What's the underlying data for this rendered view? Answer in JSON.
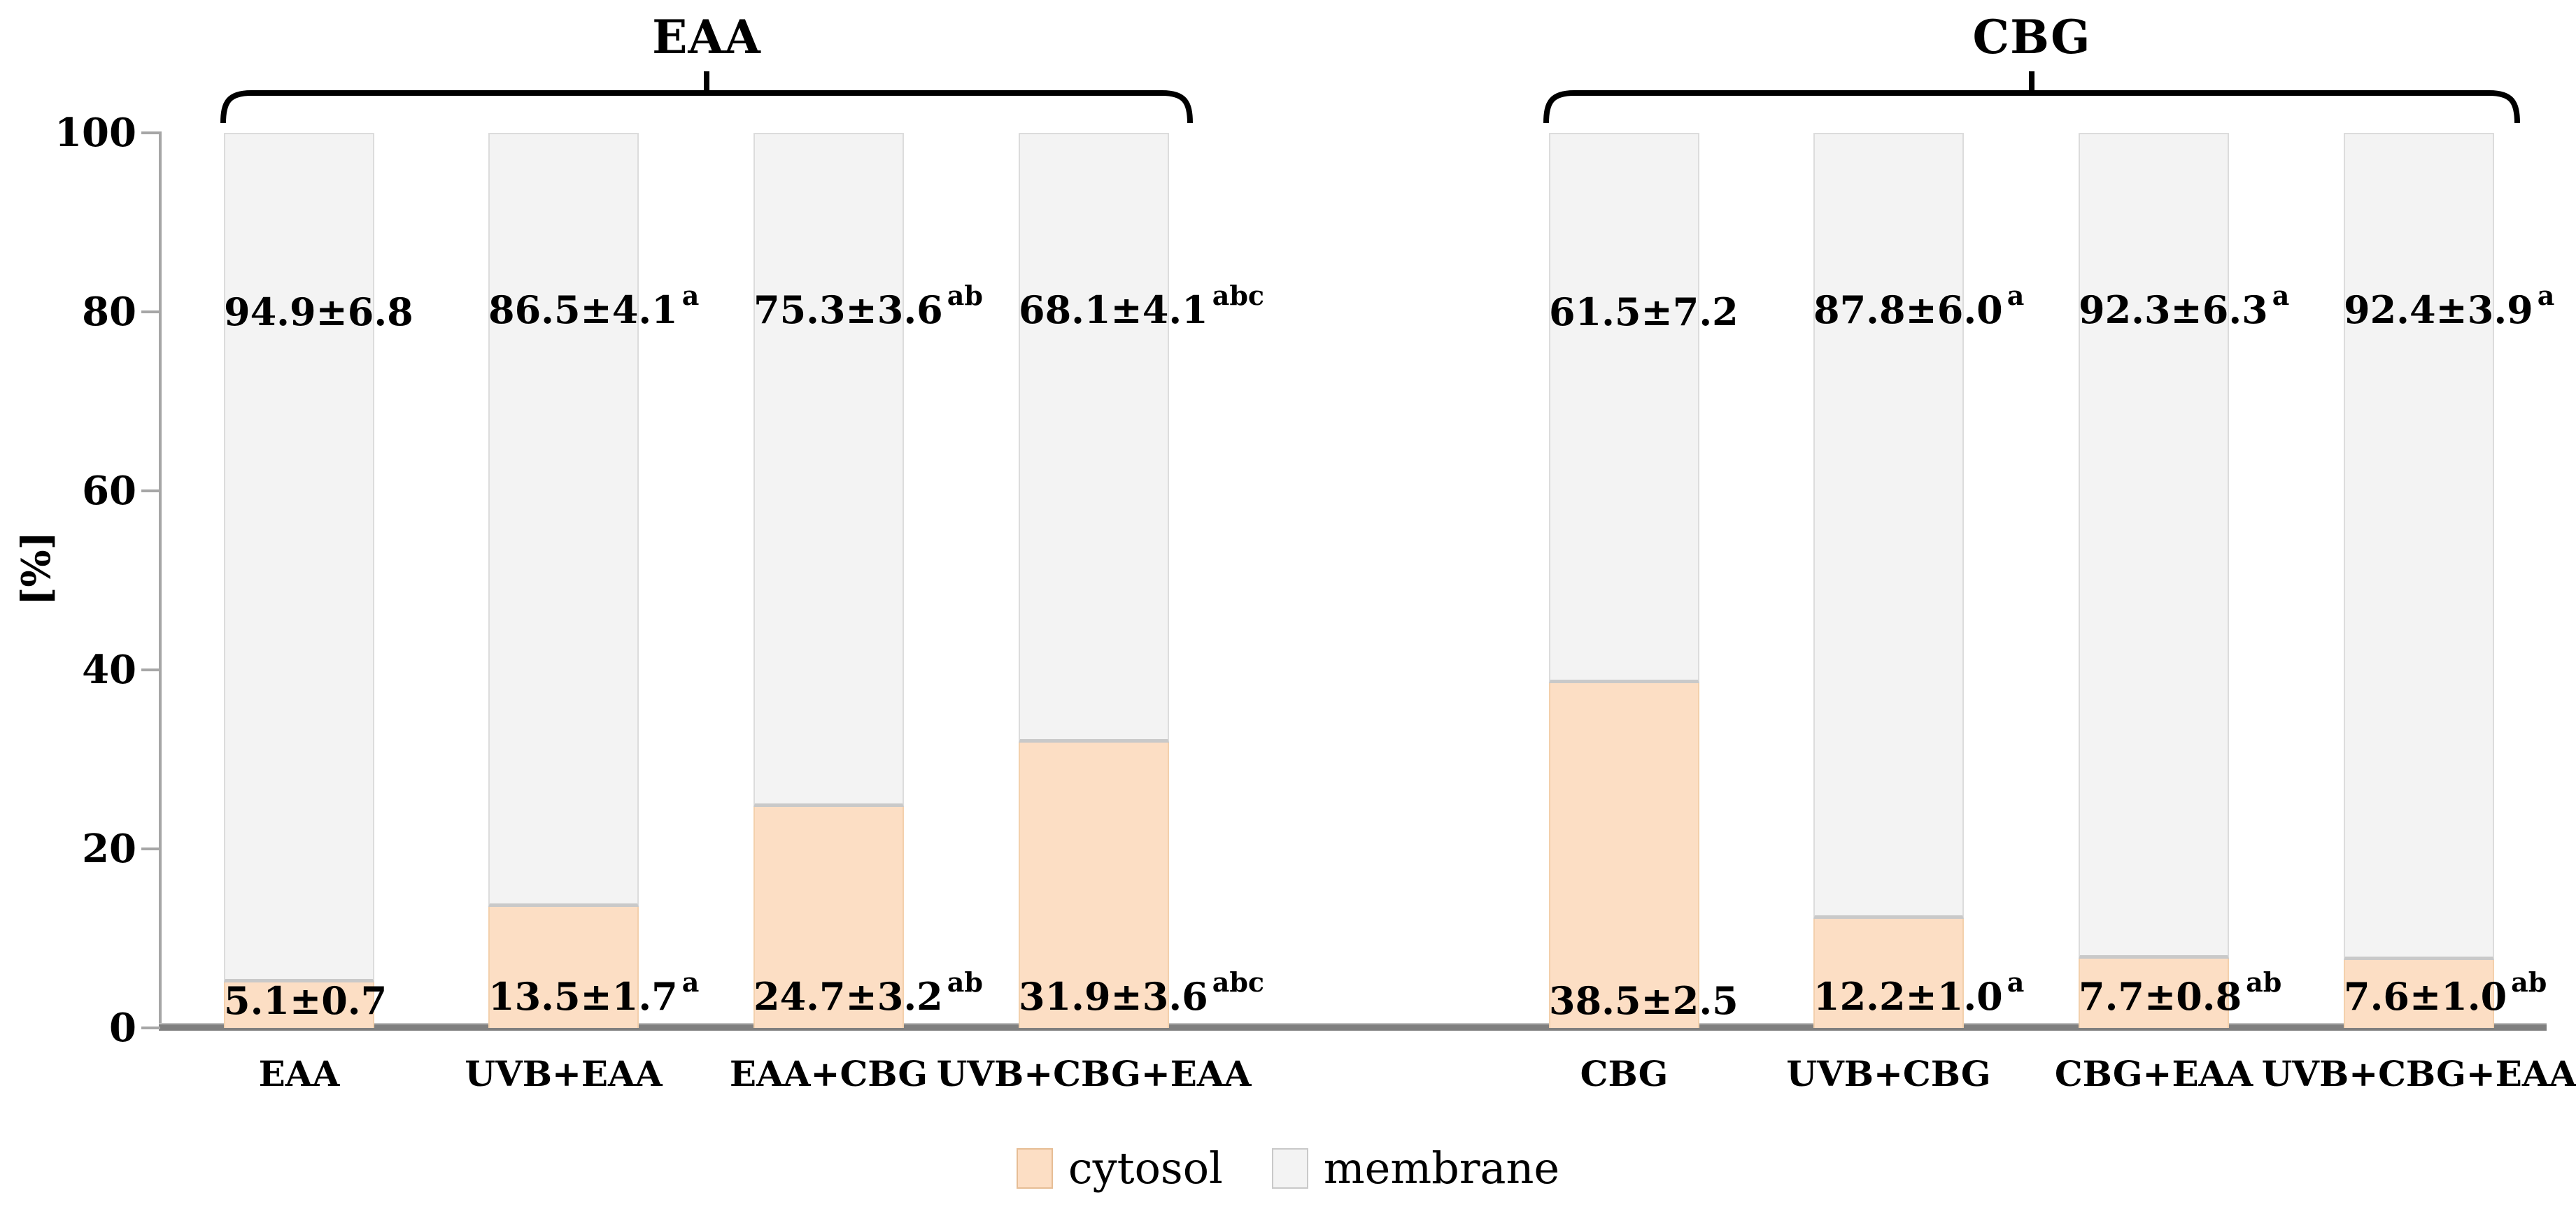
{
  "figure": {
    "background": "#ffffff",
    "text_color": "#000000",
    "axis_color": "#a6a6a6",
    "baseline_color": "#7f7f7f"
  },
  "chart_data": {
    "type": "bar",
    "stacked": true,
    "orientation": "vertical",
    "title": "",
    "xlabel": "",
    "ylabel": "[%]",
    "ylim": [
      0,
      100
    ],
    "yticks": [
      0,
      20,
      40,
      60,
      80,
      100
    ],
    "grid": false,
    "legend_position": "bottom",
    "legend": [
      {
        "name": "cytosol",
        "color": "#fcdec4",
        "border": "#e6bd95"
      },
      {
        "name": "membrane",
        "color": "#f3f3f3",
        "border": "#c9c9c9"
      }
    ],
    "categories": [
      "EAA",
      "UVB+EAA",
      "EAA+CBG",
      "UVB+CBG+EAA",
      "CBG",
      "UVB+CBG",
      "CBG+EAA",
      "UVB+CBG+EAA"
    ],
    "series": [
      {
        "name": "cytosol",
        "values": [
          5.1,
          13.5,
          24.7,
          31.9,
          38.5,
          12.2,
          7.7,
          7.6
        ]
      },
      {
        "name": "membrane",
        "values": [
          94.9,
          86.5,
          75.3,
          68.1,
          61.5,
          87.8,
          92.3,
          92.4
        ]
      }
    ],
    "groups": [
      {
        "title": "EAA",
        "bars": [
          {
            "category": "EAA",
            "cytosol": 5.1,
            "membrane": 94.9,
            "cytosol_label": "5.1±0.7",
            "cytosol_sup": "",
            "membrane_label": "94.9±6.8",
            "membrane_sup": ""
          },
          {
            "category": "UVB+EAA",
            "cytosol": 13.5,
            "membrane": 86.5,
            "cytosol_label": "13.5±1.7",
            "cytosol_sup": "a",
            "membrane_label": "86.5±4.1",
            "membrane_sup": "a"
          },
          {
            "category": "EAA+CBG",
            "cytosol": 24.7,
            "membrane": 75.3,
            "cytosol_label": "24.7±3.2",
            "cytosol_sup": "ab",
            "membrane_label": "75.3±3.6",
            "membrane_sup": "ab"
          },
          {
            "category": "UVB+CBG+EAA",
            "cytosol": 31.9,
            "membrane": 68.1,
            "cytosol_label": "31.9±3.6",
            "cytosol_sup": "abc",
            "membrane_label": "68.1±4.1",
            "membrane_sup": "abc"
          }
        ]
      },
      {
        "title": "CBG",
        "bars": [
          {
            "category": "CBG",
            "cytosol": 38.5,
            "membrane": 61.5,
            "cytosol_label": "38.5±2.5",
            "cytosol_sup": "",
            "membrane_label": "61.5±7.2",
            "membrane_sup": ""
          },
          {
            "category": "UVB+CBG",
            "cytosol": 12.2,
            "membrane": 87.8,
            "cytosol_label": "12.2±1.0",
            "cytosol_sup": "a",
            "membrane_label": "87.8±6.0",
            "membrane_sup": "a"
          },
          {
            "category": "CBG+EAA",
            "cytosol": 7.7,
            "membrane": 92.3,
            "cytosol_label": "7.7±0.8",
            "cytosol_sup": "ab",
            "membrane_label": "92.3±6.3",
            "membrane_sup": "a"
          },
          {
            "category": "UVB+CBG+EAA",
            "cytosol": 7.6,
            "membrane": 92.4,
            "cytosol_label": "7.6±1.0",
            "cytosol_sup": "ab",
            "membrane_label": "92.4±3.9",
            "membrane_sup": "a"
          }
        ]
      }
    ]
  }
}
